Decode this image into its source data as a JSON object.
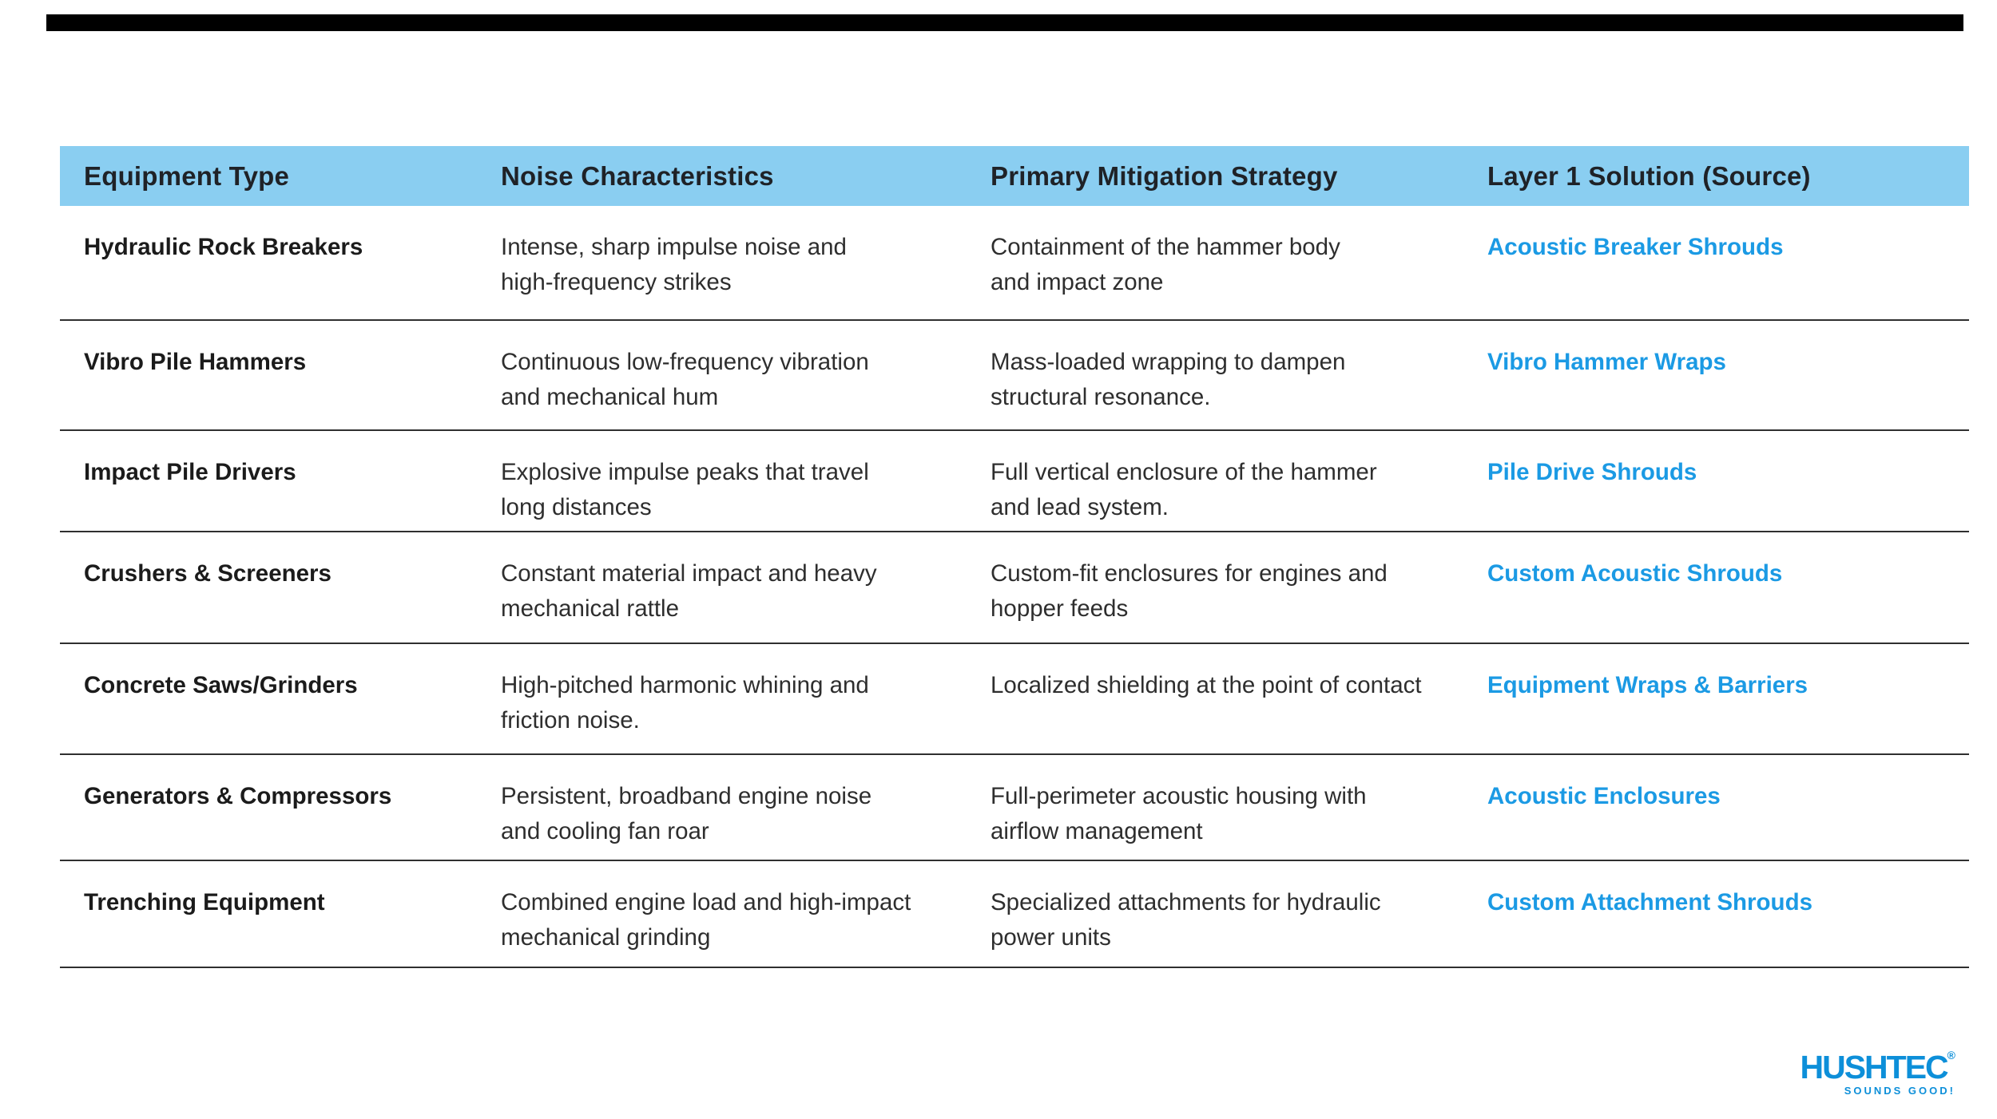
{
  "header": {
    "columns": [
      "Equipment Type",
      "Noise Characteristics",
      "Primary Mitigation Strategy",
      "Layer 1 Solution (Source)"
    ]
  },
  "rows": [
    {
      "equipment": "Hydraulic Rock Breakers",
      "noise": "Intense, sharp impulse noise and\nhigh-frequency strikes",
      "strategy": "Containment of the hammer body\nand impact zone",
      "solution": "Acoustic Breaker Shrouds"
    },
    {
      "equipment": "Vibro Pile Hammers",
      "noise": "Continuous low-frequency vibration\nand mechanical hum",
      "strategy": "Mass-loaded wrapping to dampen\nstructural resonance.",
      "solution": "Vibro Hammer Wraps"
    },
    {
      "equipment": "Impact Pile Drivers",
      "noise": "Explosive impulse peaks that travel\nlong distances",
      "strategy": "Full vertical enclosure of the hammer\nand lead system.",
      "solution": "Pile Drive Shrouds"
    },
    {
      "equipment": "Crushers & Screeners",
      "noise": "Constant material impact and heavy\nmechanical rattle",
      "strategy": "Custom-fit enclosures for engines and\nhopper feeds",
      "solution": "Custom Acoustic Shrouds"
    },
    {
      "equipment": "Concrete Saws/Grinders",
      "noise": "High-pitched harmonic whining and\nfriction noise.",
      "strategy": "Localized shielding at the point of contact",
      "solution": "Equipment Wraps & Barriers"
    },
    {
      "equipment": "Generators & Compressors",
      "noise": "Persistent, broadband engine noise\nand cooling fan roar",
      "strategy": "Full-perimeter acoustic housing with\nairflow management",
      "solution": "Acoustic Enclosures"
    },
    {
      "equipment": "Trenching Equipment",
      "noise": "Combined engine load and high-impact\nmechanical grinding",
      "strategy": "Specialized attachments for hydraulic\npower units",
      "solution": "Custom Attachment Shrouds"
    }
  ],
  "logo": {
    "brand": "HUSHTEC",
    "registered": "®",
    "tagline": "SOUNDS GOOD!"
  },
  "colors": {
    "header_bg": "#8ACEF1",
    "link_blue": "#1B9AE4",
    "logo_blue": "#0D8FD9",
    "separator": "#2F2F2F",
    "top_rule": "#000000"
  }
}
